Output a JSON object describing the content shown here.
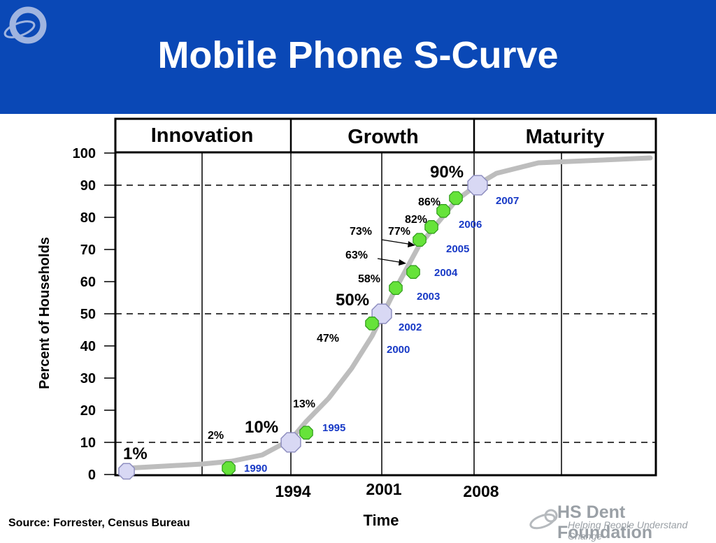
{
  "title": "Mobile Phone S-Curve",
  "source": "Source: Forrester, Census Bureau",
  "footer": {
    "name": "HS Dent Foundation",
    "tagline": "Helping People Understand Change"
  },
  "colors": {
    "header": "#0a48b6",
    "curve": "#bdbdbd",
    "marker_green": "#66e33a",
    "marker_lavender": "#d8d8f4",
    "year_blue": "#1739c6"
  },
  "chart_data": {
    "type": "line",
    "title": "Mobile Phone S-Curve",
    "xlabel": "Time",
    "ylabel": "Percent of Households",
    "ylim": [
      0,
      100
    ],
    "yticks": [
      0,
      10,
      20,
      30,
      40,
      50,
      60,
      70,
      80,
      90,
      100
    ],
    "xtick_labels": [
      "1994",
      "2001",
      "2008"
    ],
    "phases": [
      "Innovation",
      "Growth",
      "Maturity"
    ],
    "reference_lines": [
      10,
      50,
      90
    ],
    "milestones": [
      {
        "label": "1%",
        "value": 1
      },
      {
        "label": "10%",
        "value": 10,
        "year": "1994"
      },
      {
        "label": "50%",
        "value": 50,
        "year": "2001"
      },
      {
        "label": "90%",
        "value": 90,
        "year": "2008"
      }
    ],
    "data_points": [
      {
        "label": "2%",
        "value": 2,
        "year": "1990"
      },
      {
        "label": "13%",
        "value": 13,
        "year": "1995"
      },
      {
        "label": "47%",
        "value": 47,
        "year": "2000"
      },
      {
        "label": "58%",
        "value": 58,
        "year": "2002"
      },
      {
        "label": "63%",
        "value": 63,
        "year": "2003"
      },
      {
        "label": "73%",
        "value": 73,
        "year": "2004"
      },
      {
        "label": "77%",
        "value": 77,
        "year": "2005"
      },
      {
        "label": "82%",
        "value": 82,
        "year": "2006"
      },
      {
        "label": "86%",
        "value": 86,
        "year": "2007"
      }
    ]
  }
}
